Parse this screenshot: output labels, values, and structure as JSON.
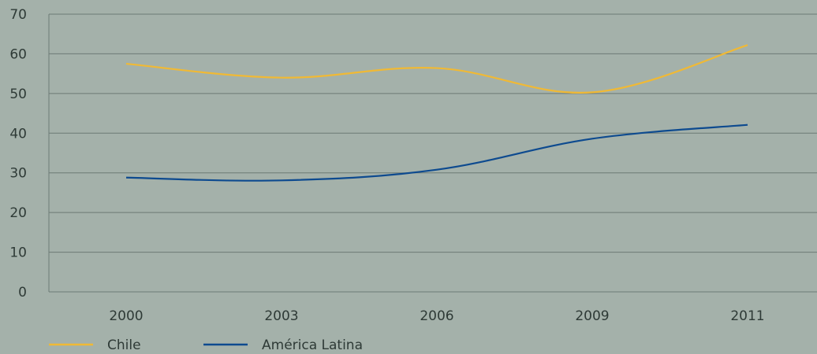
{
  "chart_data": {
    "type": "line",
    "categories": [
      "2000",
      "2003",
      "2006",
      "2009",
      "2011"
    ],
    "series": [
      {
        "name": "Chile",
        "color": "#f0b935",
        "values": [
          57.5,
          54.0,
          56.4,
          50.3,
          62.2
        ]
      },
      {
        "name": "América Latina",
        "color": "#0d4a8f",
        "values": [
          28.8,
          28.1,
          30.8,
          38.6,
          42.1
        ]
      }
    ],
    "ylim": [
      0,
      70
    ],
    "yticks": [
      0,
      10,
      20,
      30,
      40,
      50,
      60,
      70
    ],
    "grid": true,
    "gridline_color": "#6c7a75",
    "legend_position": "bottom-left"
  }
}
